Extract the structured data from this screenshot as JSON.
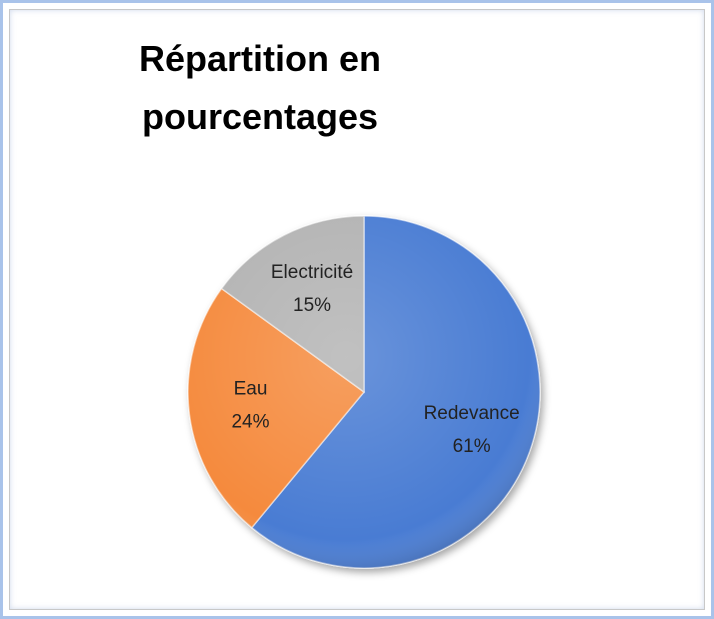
{
  "chart_data": {
    "type": "pie",
    "title": "Répartition en pourcentages",
    "categories": [
      "Redevance",
      "Eau",
      "Electricité"
    ],
    "values": [
      61,
      24,
      15
    ],
    "value_labels": [
      "61%",
      "24%",
      "15%"
    ],
    "colors": [
      "#4a7bd3",
      "#f58a3c",
      "#b3b3b3"
    ]
  }
}
